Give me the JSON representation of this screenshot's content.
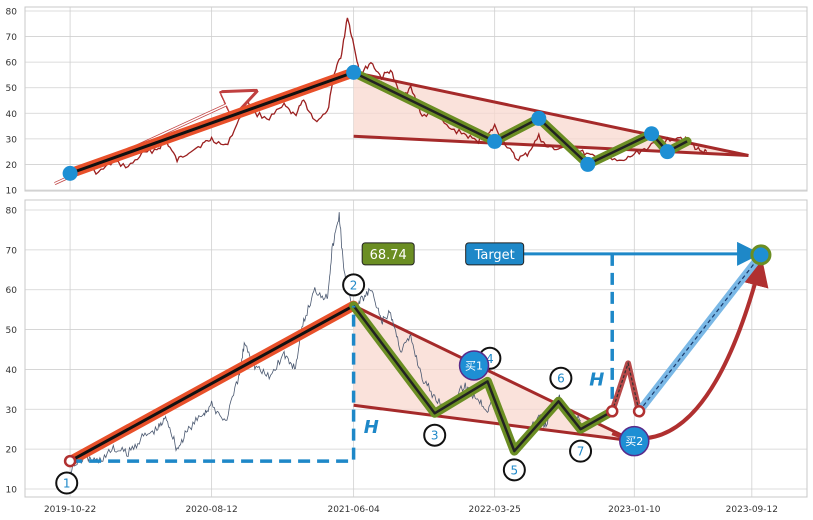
{
  "colors": {
    "grid": "#d0d0d0",
    "frame": "#c8c8c8",
    "price_top": "#9b2020",
    "price_bottom": "#4a5870",
    "trend_orange": "#e8502a",
    "trend_core": "#111111",
    "zigzag_olive": "#6b8e23",
    "zigzag_core": "#222222",
    "triangle_fill": "#f8d8cf",
    "triangle_line": "#a52a2a",
    "marker_blue": "#1e8fd4",
    "target_blue": "#1e88c8",
    "projection_red": "#b03030",
    "label_green": "#6b8e23"
  },
  "chart_data": [
    {
      "id": "top",
      "type": "line",
      "grid": true,
      "ylim": [
        10,
        80
      ],
      "yticks": [
        "10",
        "20",
        "30",
        "40",
        "50",
        "60",
        "70",
        "80"
      ],
      "xlim": [
        "2019-07-20",
        "2024-01-05"
      ],
      "x_gridlines": [
        "2019-10-22",
        "2020-08-12",
        "2021-06-04",
        "2022-03-25",
        "2023-01-10",
        "2023-09-12"
      ],
      "price_path": [
        [
          "2019-10-22",
          16.5
        ],
        [
          "2019-11-20",
          18.5
        ],
        [
          "2019-12-20",
          16.8
        ],
        [
          "2020-01-20",
          21
        ],
        [
          "2020-02-20",
          19
        ],
        [
          "2020-03-20",
          24
        ],
        [
          "2020-04-20",
          26
        ],
        [
          "2020-05-10",
          29
        ],
        [
          "2020-06-01",
          21.5
        ],
        [
          "2020-06-25",
          25
        ],
        [
          "2020-07-25",
          28
        ],
        [
          "2020-08-12",
          30
        ],
        [
          "2020-09-10",
          27
        ],
        [
          "2020-10-08",
          37
        ],
        [
          "2020-10-20",
          47
        ],
        [
          "2020-11-10",
          40
        ],
        [
          "2020-12-10",
          38
        ],
        [
          "2021-01-10",
          43
        ],
        [
          "2021-02-01",
          39
        ],
        [
          "2021-02-20",
          45
        ],
        [
          "2021-03-15",
          37
        ],
        [
          "2021-04-10",
          40
        ],
        [
          "2021-04-28",
          58
        ],
        [
          "2021-05-10",
          63
        ],
        [
          "2021-05-22",
          78
        ],
        [
          "2021-06-04",
          67
        ],
        [
          "2021-06-18",
          55
        ],
        [
          "2021-07-10",
          60
        ],
        [
          "2021-08-01",
          54
        ],
        [
          "2021-08-20",
          57
        ],
        [
          "2021-09-10",
          46
        ],
        [
          "2021-10-01",
          50
        ],
        [
          "2021-10-25",
          39
        ],
        [
          "2021-11-20",
          40
        ],
        [
          "2021-12-20",
          34
        ],
        [
          "2022-01-20",
          32
        ],
        [
          "2022-02-15",
          29
        ],
        [
          "2022-03-10",
          31
        ],
        [
          "2022-03-25",
          35
        ],
        [
          "2022-04-20",
          27
        ],
        [
          "2022-05-10",
          22
        ],
        [
          "2022-06-01",
          24
        ],
        [
          "2022-06-25",
          31
        ],
        [
          "2022-07-10",
          27
        ],
        [
          "2022-08-05",
          26
        ],
        [
          "2022-08-25",
          28
        ],
        [
          "2022-09-20",
          25
        ],
        [
          "2022-10-15",
          23
        ],
        [
          "2022-11-15",
          22
        ],
        [
          "2022-12-15",
          21
        ],
        [
          "2023-01-10",
          24
        ],
        [
          "2023-02-10",
          27
        ],
        [
          "2023-03-10",
          29
        ],
        [
          "2023-04-10",
          31
        ],
        [
          "2023-04-30",
          30
        ],
        [
          "2023-05-20",
          26
        ],
        [
          "2023-06-10",
          25
        ]
      ],
      "trend_segment": [
        [
          "2019-10-22",
          16.5
        ],
        [
          "2021-06-04",
          56
        ]
      ],
      "arrow_hint": [
        [
          "2019-09-20",
          12.5
        ],
        [
          "2020-11-05",
          48
        ]
      ],
      "zigzag": [
        [
          "2021-06-04",
          56
        ],
        [
          "2022-03-25",
          29
        ],
        [
          "2022-06-25",
          38
        ],
        [
          "2022-10-05",
          20
        ],
        [
          "2023-02-15",
          32
        ],
        [
          "2023-03-20",
          25
        ],
        [
          "2023-04-30",
          29
        ]
      ],
      "triangle": {
        "apex": [
          "2023-09-05",
          23.5
        ],
        "upper_start": [
          "2021-06-04",
          56
        ],
        "lower_start": [
          "2021-06-04",
          31
        ]
      },
      "pivots": [
        [
          "2019-10-22",
          16.5
        ],
        [
          "2021-06-04",
          56
        ],
        [
          "2022-03-25",
          29
        ],
        [
          "2022-06-25",
          38
        ],
        [
          "2022-10-05",
          20
        ],
        [
          "2023-02-15",
          32
        ],
        [
          "2023-03-20",
          25
        ]
      ]
    },
    {
      "id": "bottom",
      "type": "line",
      "grid": true,
      "ylim": [
        10,
        80
      ],
      "yticks": [
        "10",
        "20",
        "30",
        "40",
        "50",
        "60",
        "70",
        "80"
      ],
      "xlim": [
        "2019-07-20",
        "2024-01-05"
      ],
      "xticks": [
        "2019-10-22",
        "2020-08-12",
        "2021-06-04",
        "2022-03-25",
        "2023-01-10",
        "2023-09-12"
      ],
      "price_path": [
        [
          "2019-10-22",
          15
        ],
        [
          "2019-11-20",
          18
        ],
        [
          "2019-12-20",
          17
        ],
        [
          "2020-01-20",
          20
        ],
        [
          "2020-02-20",
          19
        ],
        [
          "2020-03-20",
          23
        ],
        [
          "2020-04-20",
          25
        ],
        [
          "2020-05-10",
          28
        ],
        [
          "2020-06-01",
          20
        ],
        [
          "2020-06-25",
          25
        ],
        [
          "2020-07-25",
          29
        ],
        [
          "2020-08-12",
          31
        ],
        [
          "2020-09-10",
          27
        ],
        [
          "2020-10-08",
          38
        ],
        [
          "2020-10-20",
          47
        ],
        [
          "2020-11-10",
          41
        ],
        [
          "2020-12-10",
          38
        ],
        [
          "2021-01-10",
          44
        ],
        [
          "2021-02-01",
          40
        ],
        [
          "2021-02-20",
          52
        ],
        [
          "2021-03-15",
          60
        ],
        [
          "2021-04-10",
          58
        ],
        [
          "2021-04-20",
          70
        ],
        [
          "2021-05-05",
          79
        ],
        [
          "2021-05-15",
          64
        ],
        [
          "2021-06-04",
          55
        ],
        [
          "2021-06-18",
          57
        ],
        [
          "2021-07-10",
          60
        ],
        [
          "2021-08-01",
          52
        ],
        [
          "2021-08-20",
          54
        ],
        [
          "2021-09-10",
          45
        ],
        [
          "2021-10-01",
          48
        ],
        [
          "2021-10-25",
          38
        ],
        [
          "2021-11-20",
          33
        ],
        [
          "2021-12-20",
          30
        ],
        [
          "2022-01-20",
          36
        ],
        [
          "2022-02-15",
          33
        ],
        [
          "2022-03-10",
          30
        ],
        [
          "2022-03-25",
          34
        ],
        [
          "2022-04-20",
          27
        ],
        [
          "2022-05-10",
          20
        ],
        [
          "2022-06-01",
          24
        ],
        [
          "2022-06-25",
          28
        ],
        [
          "2022-07-10",
          26
        ],
        [
          "2022-08-05",
          33
        ],
        [
          "2022-08-25",
          29
        ],
        [
          "2022-09-20",
          27
        ]
      ],
      "trend_segment": [
        [
          "2019-10-22",
          17
        ],
        [
          "2021-06-04",
          56
        ]
      ],
      "zigzag": [
        [
          "2021-06-04",
          56
        ],
        [
          "2021-11-20",
          29
        ],
        [
          "2022-03-10",
          37
        ],
        [
          "2022-05-05",
          19.5
        ],
        [
          "2022-08-05",
          32
        ],
        [
          "2022-09-20",
          25
        ],
        [
          "2022-11-25",
          29.5
        ]
      ],
      "triangle": {
        "apex": [
          "2023-01-10",
          22
        ],
        "upper_start": [
          "2021-06-04",
          56
        ],
        "lower_start": [
          "2021-06-04",
          31
        ]
      },
      "forecast_zigzag": [
        [
          "2022-11-25",
          29.5
        ],
        [
          "2022-12-28",
          41.5
        ],
        [
          "2023-01-20",
          29.5
        ]
      ],
      "target_path": [
        [
          "2023-01-20",
          29.5
        ],
        [
          "2023-10-01",
          68.74
        ]
      ],
      "projection_curve": [
        [
          "2022-11-25",
          24
        ],
        [
          "2023-06-10",
          30
        ],
        [
          "2023-10-01",
          67
        ]
      ],
      "height_measure_1": {
        "from": [
          "2019-10-22",
          17
        ],
        "corner": [
          "2021-06-04",
          17
        ],
        "to": [
          "2021-06-04",
          56
        ],
        "label_at": [
          "2021-06-25",
          24
        ],
        "label": "H"
      },
      "height_measure_2": {
        "level_from": [
          "2022-05-20",
          69
        ],
        "level_to": [
          "2023-09-25",
          69
        ],
        "drop_x": "2022-11-25",
        "drop_to": 29.5,
        "label_at": [
          "2022-10-08",
          36
        ],
        "label": "H"
      },
      "target_value_box": {
        "at": [
          "2021-08-15",
          69
        ],
        "text": "68.74"
      },
      "target_label_box": {
        "at": [
          "2022-03-25",
          69
        ],
        "text": "Target"
      },
      "target_point": [
        "2023-10-01",
        68.74
      ],
      "point_labels": [
        {
          "text": "1",
          "at": [
            "2019-10-15",
            11.5
          ]
        },
        {
          "text": "2",
          "at": [
            "2021-06-04",
            61.2
          ]
        },
        {
          "text": "3",
          "at": [
            "2021-11-20",
            23.5
          ]
        },
        {
          "text": "4",
          "at": [
            "2022-03-15",
            42.8
          ]
        },
        {
          "text": "5",
          "at": [
            "2022-05-05",
            14.8
          ]
        },
        {
          "text": "6",
          "at": [
            "2022-08-10",
            37.8
          ]
        },
        {
          "text": "7",
          "at": [
            "2022-09-20",
            19.5
          ]
        }
      ],
      "buy_markers": [
        {
          "text": "买1",
          "at": [
            "2022-02-10",
            41
          ]
        },
        {
          "text": "买2",
          "at": [
            "2023-01-10",
            22
          ]
        }
      ],
      "small_markers": [
        [
          "2019-10-22",
          17
        ],
        [
          "2022-11-25",
          29.5
        ],
        [
          "2023-01-20",
          29.5
        ]
      ]
    }
  ]
}
